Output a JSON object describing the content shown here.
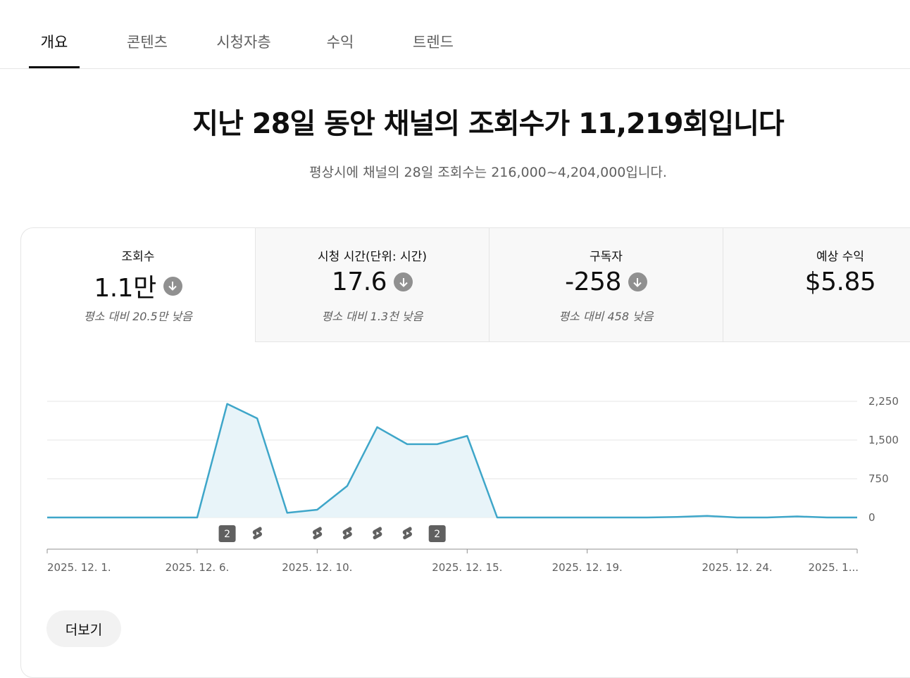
{
  "tabs": [
    "개요",
    "콘텐츠",
    "시청자층",
    "수익",
    "트렌드"
  ],
  "headline": "지난 28일 동안 채널의 조회수가 11,219회입니다",
  "subline": "평상시에 채널의 28일 조회수는 216,000~4,204,000입니다.",
  "metrics": [
    {
      "label": "조회수",
      "value": "1.1만",
      "note": "평소 대비 20.5만 낮음",
      "trend_icon": "arrow-down-icon"
    },
    {
      "label": "시청 시간(단위: 시간)",
      "value": "17.6",
      "note": "평소 대비 1.3천 낮음",
      "trend_icon": "arrow-down-icon"
    },
    {
      "label": "구독자",
      "value": "-258",
      "note": "평소 대비 458 낮음",
      "trend_icon": "arrow-down-icon"
    },
    {
      "label": "예상 수익",
      "value": "$5.85",
      "note": ""
    }
  ],
  "chart_data": {
    "type": "area",
    "x": [
      "2025. 12. 1.",
      "2025. 12. 2.",
      "2025. 12. 3.",
      "2025. 12. 4.",
      "2025. 12. 5.",
      "2025. 12. 6.",
      "2025. 12. 7.",
      "2025. 12. 8.",
      "2025. 12. 9.",
      "2025. 12. 10.",
      "2025. 12. 11.",
      "2025. 12. 12.",
      "2025. 12. 13.",
      "2025. 12. 14.",
      "2025. 12. 15.",
      "2025. 12. 16.",
      "2025. 12. 17.",
      "2025. 12. 18.",
      "2025. 12. 19.",
      "2025. 12. 20.",
      "2025. 12. 21.",
      "2025. 12. 22.",
      "2025. 12. 23.",
      "2025. 12. 24.",
      "2025. 12. 25.",
      "2025. 12. 26.",
      "2025. 12. 27.",
      "2025. 12. 28."
    ],
    "values": [
      0,
      0,
      0,
      0,
      0,
      0,
      2200,
      1920,
      90,
      150,
      610,
      1750,
      1420,
      1420,
      1580,
      0,
      0,
      0,
      0,
      0,
      0,
      10,
      30,
      0,
      0,
      20,
      0,
      0
    ],
    "x_tick_labels": [
      "2025. 12. 1.",
      "2025. 12. 6.",
      "2025. 12. 10.",
      "2025. 12. 15.",
      "2025. 12. 19.",
      "2025. 12. 24.",
      "2025. 1..."
    ],
    "y_ticks": [
      "0",
      "750",
      "1,500",
      "2,250"
    ],
    "ylim": [
      0,
      2250
    ],
    "grid": true,
    "color": "#3ea6c9",
    "fill": "#e8f4f9",
    "markers": [
      {
        "date": "2025. 12. 7.",
        "kind": "count",
        "label": "2"
      },
      {
        "date": "2025. 12. 8.",
        "kind": "shorts"
      },
      {
        "date": "2025. 12. 10.",
        "kind": "shorts"
      },
      {
        "date": "2025. 12. 11.",
        "kind": "shorts"
      },
      {
        "date": "2025. 12. 12.",
        "kind": "shorts"
      },
      {
        "date": "2025. 12. 13.",
        "kind": "shorts"
      },
      {
        "date": "2025. 12. 14.",
        "kind": "count",
        "label": "2"
      }
    ]
  },
  "more_button": "더보기"
}
